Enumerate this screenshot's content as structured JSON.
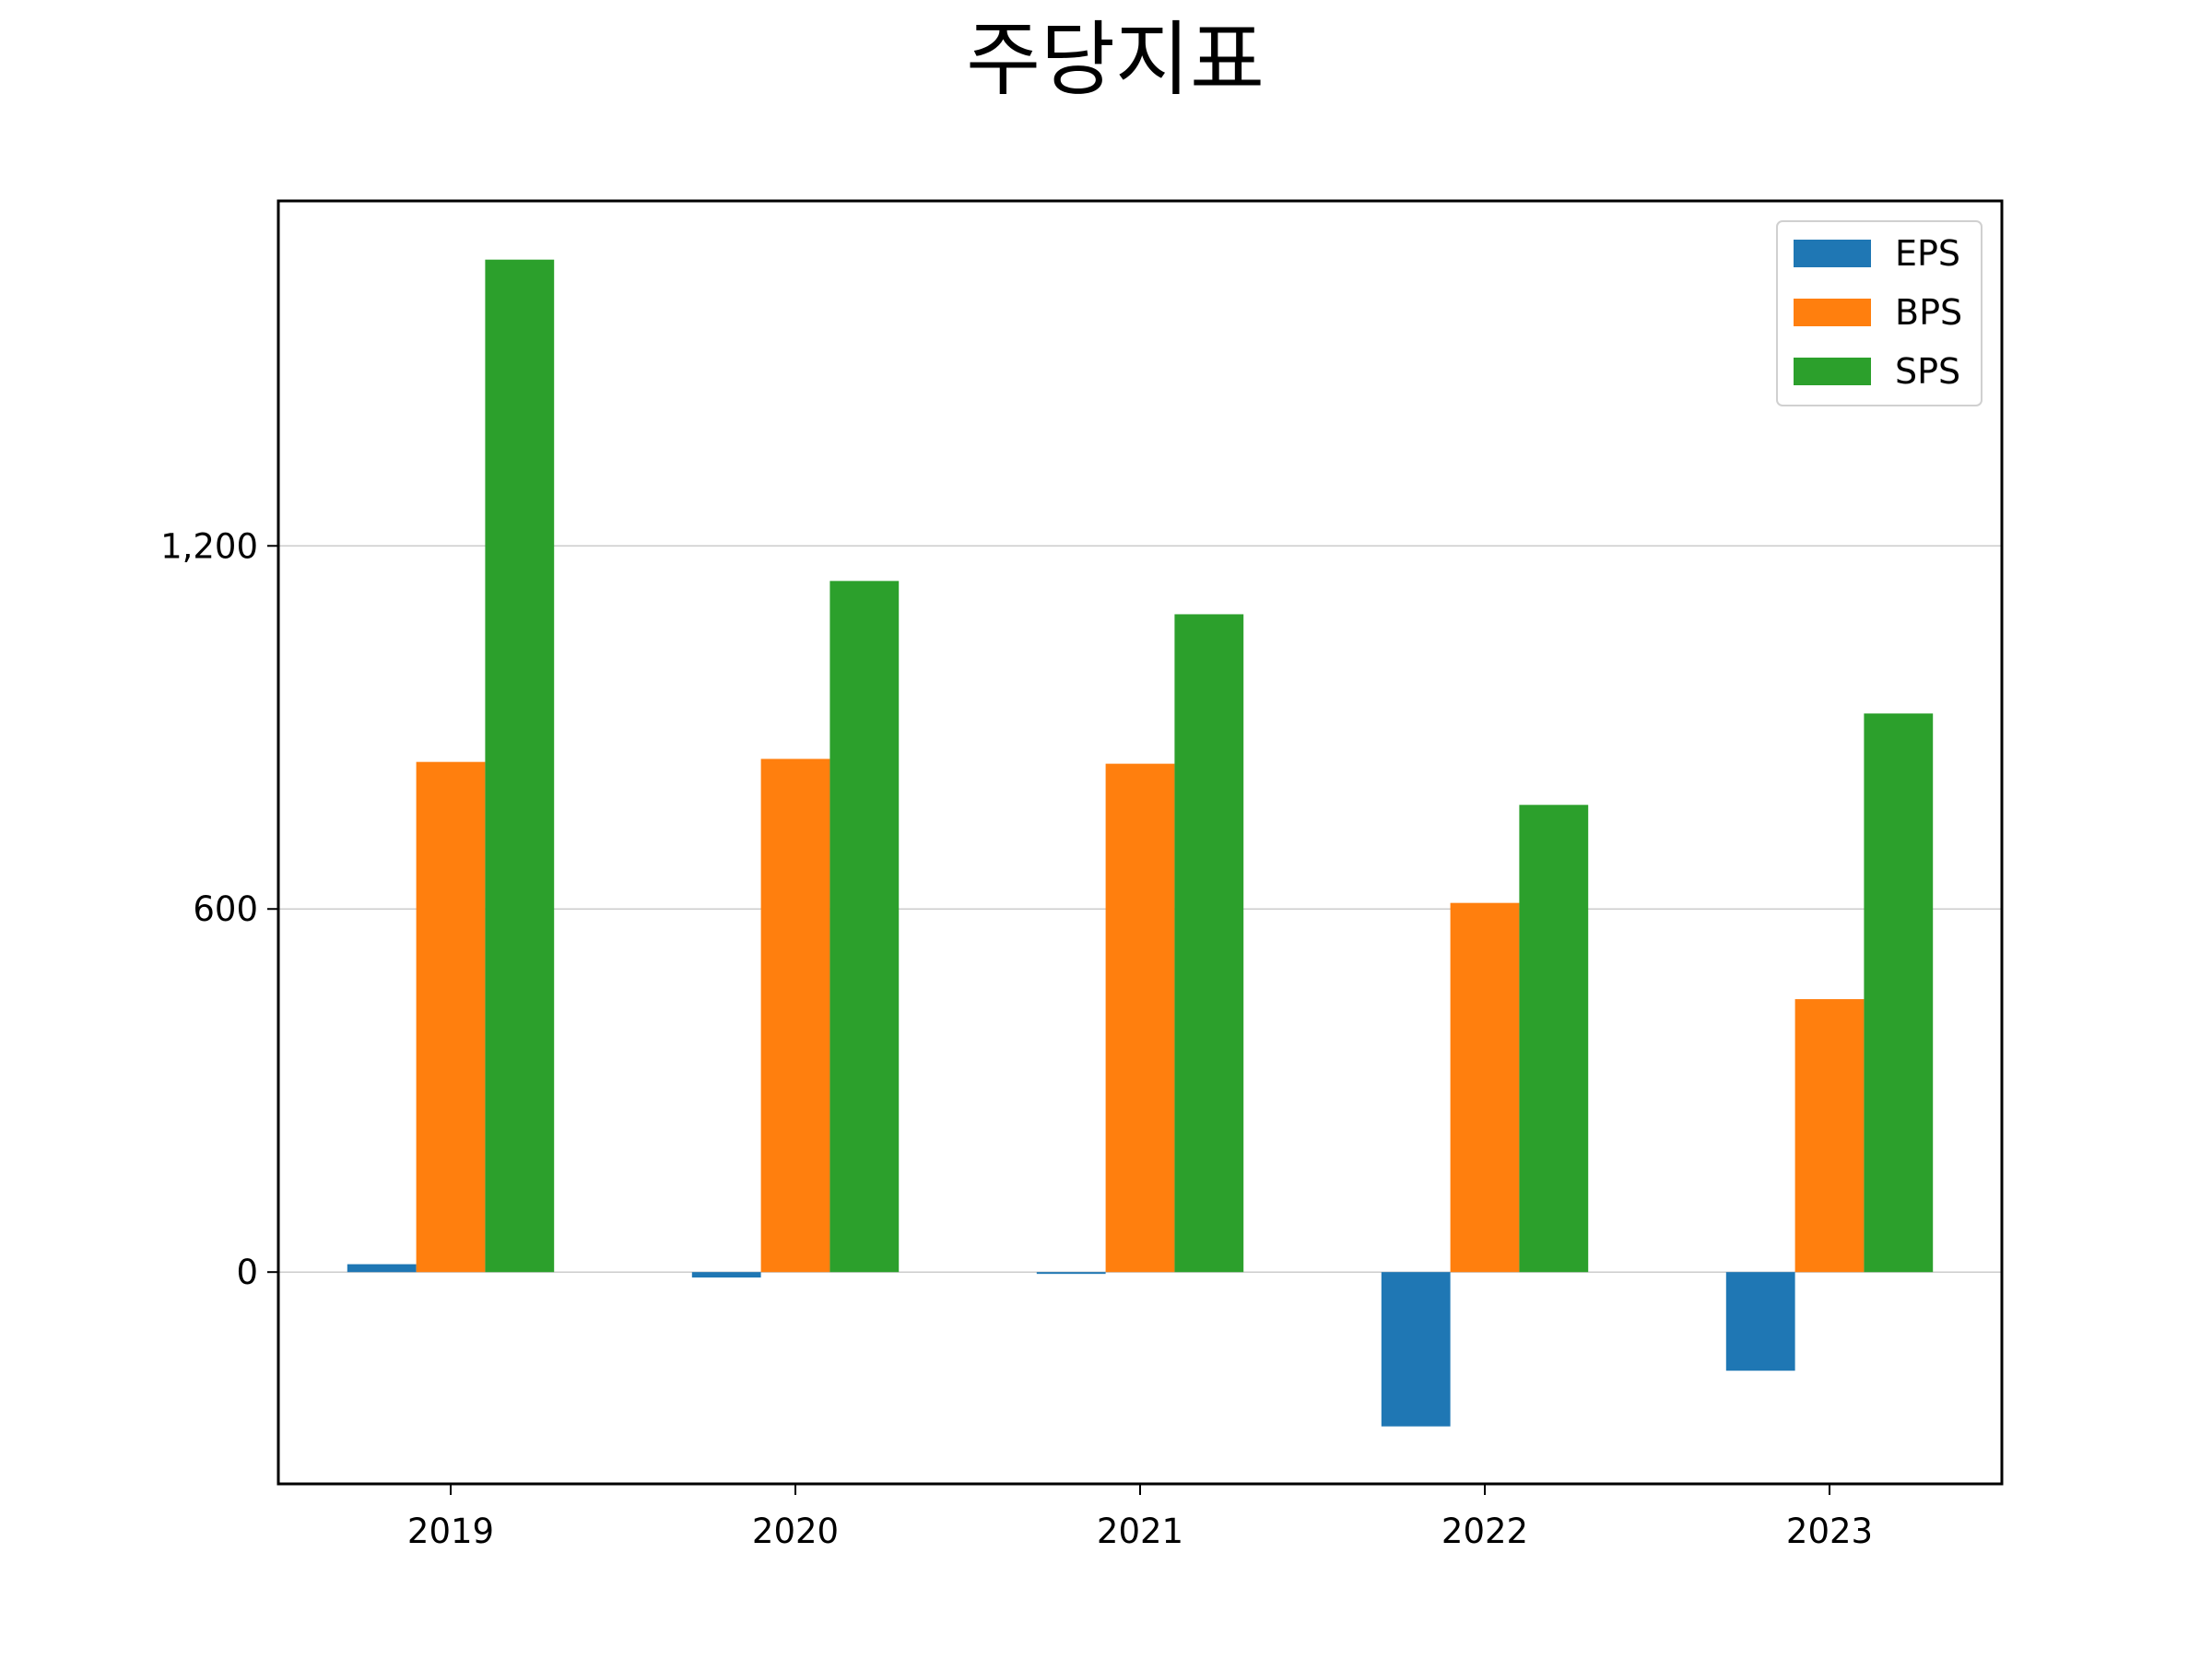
{
  "chart_data": {
    "type": "bar",
    "title": "주당지표",
    "xlabel": "",
    "ylabel": "",
    "categories": [
      "2019",
      "2020",
      "2021",
      "2022",
      "2023"
    ],
    "series": [
      {
        "name": "EPS",
        "color": "#1f77b4",
        "values": [
          13,
          -9,
          -3,
          -255,
          -163
        ]
      },
      {
        "name": "BPS",
        "color": "#ff7f0e",
        "values": [
          843,
          848,
          840,
          610,
          451
        ]
      },
      {
        "name": "SPS",
        "color": "#2ca02c",
        "values": [
          1673,
          1142,
          1087,
          772,
          923
        ]
      }
    ],
    "yticks": [
      0,
      600,
      1200
    ],
    "ytick_labels": [
      "0",
      "600",
      "1,200"
    ],
    "ylim": [
      -350,
      1770
    ],
    "grid": "y",
    "legend_position": "upper right"
  }
}
